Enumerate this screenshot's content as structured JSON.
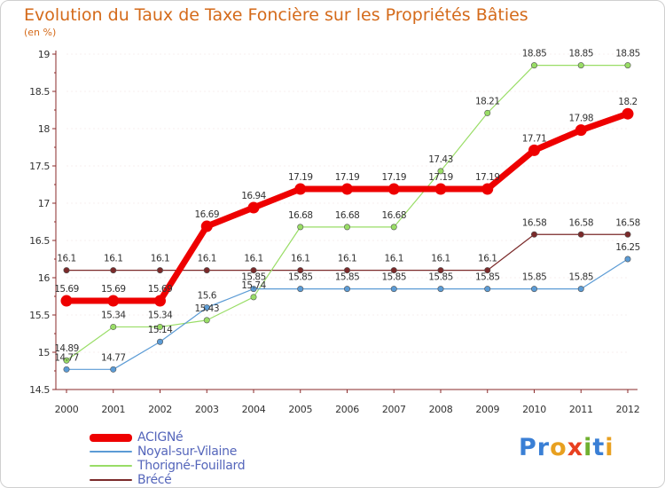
{
  "title": "Evolution du Taux de Taxe Foncière sur les Propriétés Bâties",
  "unit_label": "(en %)",
  "logo_text": "Proxiti",
  "chart_data": {
    "type": "line",
    "title": "Evolution du Taux de Taxe Foncière sur les Propriétés Bâties",
    "ylabel": "(en %)",
    "xlabel": "",
    "ylim": [
      14.5,
      19
    ],
    "yticks": [
      "14.5",
      "15",
      "15.5",
      "16",
      "16.5",
      "17",
      "17.5",
      "18",
      "18.5",
      "19"
    ],
    "x": [
      "2000",
      "2001",
      "2002",
      "2003",
      "2004",
      "2005",
      "2006",
      "2007",
      "2008",
      "2009",
      "2010",
      "2011",
      "2012"
    ],
    "legend_position": "bottom-left",
    "series": [
      {
        "name": "Brécé",
        "color": "#7b2a2a",
        "values": [
          16.1,
          16.1,
          16.1,
          16.1,
          16.1,
          16.1,
          16.1,
          16.1,
          16.1,
          16.1,
          16.58,
          16.58,
          16.58
        ],
        "labels": [
          "16.1",
          "16.1",
          "16.1",
          "16.1",
          "16.1",
          "16.1",
          "16.1",
          "16.1",
          "16.1",
          "16.1",
          "16.58",
          "16.58",
          "16.58"
        ]
      },
      {
        "name": "Thorigné-Fouillard",
        "color": "#99dd66",
        "values": [
          14.89,
          15.34,
          15.34,
          15.43,
          15.74,
          16.68,
          16.68,
          16.68,
          17.43,
          18.21,
          18.85,
          18.85,
          18.85
        ],
        "labels": [
          "14.89",
          "15.34",
          "15.34",
          "15.43",
          "15.74",
          "16.68",
          "16.68",
          "16.68",
          "17.43",
          "18.21",
          "18.85",
          "18.85",
          "18.85"
        ]
      },
      {
        "name": "Noyal-sur-Vilaine",
        "color": "#5b9bd5",
        "values": [
          14.77,
          14.77,
          15.14,
          15.6,
          15.85,
          15.85,
          15.85,
          15.85,
          15.85,
          15.85,
          15.85,
          15.85,
          16.25
        ],
        "labels": [
          "14.77",
          "14.77",
          "15.14",
          "15.6",
          "15.85",
          "15.85",
          "15.85",
          "15.85",
          "15.85",
          "15.85",
          "15.85",
          "15.85",
          "16.25"
        ]
      },
      {
        "name": "ACIGNé",
        "color": "#ee0000",
        "values": [
          15.69,
          15.69,
          15.69,
          16.69,
          16.94,
          17.19,
          17.19,
          17.19,
          17.19,
          17.19,
          17.71,
          17.98,
          18.2
        ],
        "labels": [
          "15.69",
          "15.69",
          "15.69",
          "16.69",
          "16.94",
          "17.19",
          "17.19",
          "17.19",
          "17.19",
          "17.19",
          "17.71",
          "17.98",
          "18.2"
        ]
      }
    ],
    "legend": [
      "ACIGNé",
      "Noyal-sur-Vilaine",
      "Thorigné-Fouillard",
      "Brécé"
    ]
  }
}
